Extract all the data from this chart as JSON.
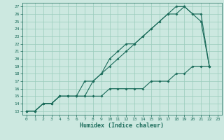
{
  "title": "",
  "xlabel": "Humidex (Indice chaleur)",
  "bg_color": "#cce8e0",
  "grid_color": "#99ccbb",
  "line_color": "#1a6b5a",
  "xlim": [
    -0.5,
    23.5
  ],
  "ylim": [
    12.5,
    27.5
  ],
  "xticks": [
    0,
    1,
    2,
    3,
    4,
    5,
    6,
    7,
    8,
    9,
    10,
    11,
    12,
    13,
    14,
    15,
    16,
    17,
    18,
    19,
    20,
    21,
    22,
    23
  ],
  "yticks": [
    13,
    14,
    15,
    16,
    17,
    18,
    19,
    20,
    21,
    22,
    23,
    24,
    25,
    26,
    27
  ],
  "line1_x": [
    0,
    1,
    2,
    3,
    4,
    5,
    6,
    7,
    8,
    9,
    10,
    11,
    12,
    13,
    14,
    15,
    16,
    17,
    18,
    19,
    20,
    21,
    22
  ],
  "line1_y": [
    13,
    13,
    14,
    14,
    15,
    15,
    15,
    15,
    15,
    15,
    16,
    16,
    16,
    16,
    16,
    17,
    17,
    17,
    18,
    18,
    19,
    19,
    19
  ],
  "line2_x": [
    0,
    1,
    2,
    3,
    4,
    5,
    6,
    7,
    8,
    9,
    10,
    11,
    12,
    13,
    14,
    15,
    16,
    17,
    18,
    19,
    20,
    21,
    22
  ],
  "line2_y": [
    13,
    13,
    14,
    14,
    15,
    15,
    15,
    15,
    17,
    18,
    19,
    20,
    21,
    22,
    23,
    24,
    25,
    26,
    26,
    27,
    26,
    25,
    19
  ],
  "line3_x": [
    0,
    1,
    2,
    3,
    4,
    5,
    6,
    7,
    8,
    9,
    10,
    11,
    12,
    13,
    14,
    15,
    16,
    17,
    18,
    19,
    20,
    21,
    22
  ],
  "line3_y": [
    13,
    13,
    14,
    14,
    15,
    15,
    15,
    17,
    17,
    18,
    20,
    21,
    22,
    22,
    23,
    24,
    25,
    26,
    27,
    27,
    26,
    26,
    19
  ],
  "xlabel_fontsize": 6,
  "tick_fontsize": 4.5,
  "marker_size": 2.0,
  "line_width": 0.8
}
